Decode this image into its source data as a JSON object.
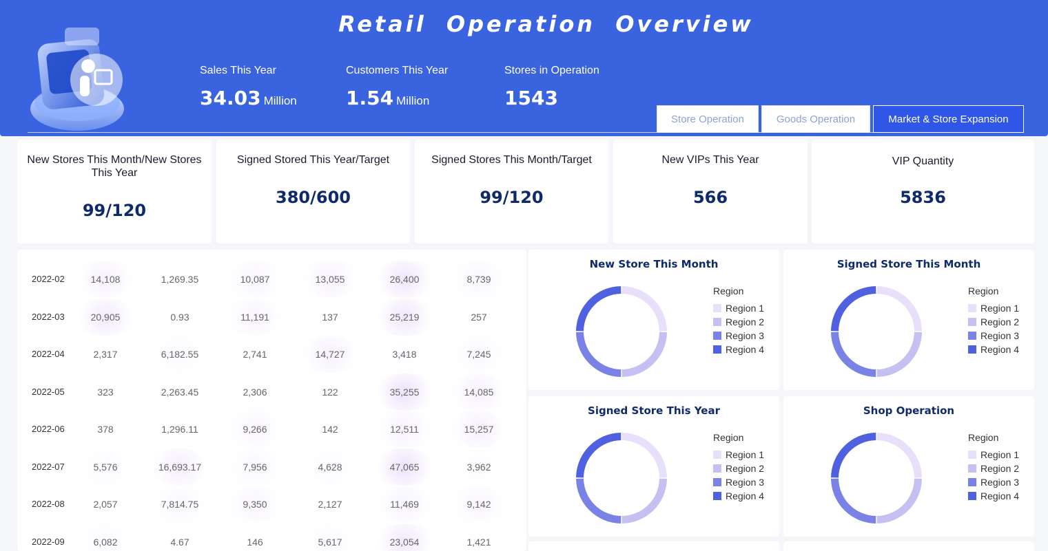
{
  "header": {
    "title": "Retail Operation Overview",
    "kpis": [
      {
        "label": "Sales This Year",
        "value": "34.03",
        "unit": "Million"
      },
      {
        "label": "Customers This Year",
        "value": "1.54",
        "unit": "Million"
      },
      {
        "label": "Stores in Operation",
        "value": "1543",
        "unit": ""
      }
    ],
    "tabs": [
      {
        "label": "Store Operation",
        "active": false
      },
      {
        "label": "Goods Operation",
        "active": false
      },
      {
        "label": "Market & Store Expansion",
        "active": true
      }
    ]
  },
  "cards": [
    {
      "label": "New Stores This Month/New Stores This Year",
      "value": "99/120"
    },
    {
      "label": "Signed Stored This Year/Target",
      "value": "380/600"
    },
    {
      "label": "Signed Stores This Month/Target",
      "value": "99/120"
    },
    {
      "label": "New VIPs This Year",
      "value": "566"
    },
    {
      "label": "VIP Quantity",
      "value": "5836"
    }
  ],
  "table": {
    "rows": [
      {
        "date": "2022-02",
        "cells": [
          "14,108",
          "1,269.35",
          "10,087",
          "13,055",
          "26,400",
          "8,739"
        ]
      },
      {
        "date": "2022-03",
        "cells": [
          "20,905",
          "0.93",
          "11,191",
          "137",
          "25,219",
          "257"
        ]
      },
      {
        "date": "2022-04",
        "cells": [
          "2,317",
          "6,182.55",
          "2,741",
          "14,727",
          "3,418",
          "7,245"
        ]
      },
      {
        "date": "2022-05",
        "cells": [
          "323",
          "2,263.45",
          "2,306",
          "122",
          "35,255",
          "14,085"
        ]
      },
      {
        "date": "2022-06",
        "cells": [
          "378",
          "1,296.11",
          "9,266",
          "142",
          "12,511",
          "15,257"
        ]
      },
      {
        "date": "2022-07",
        "cells": [
          "5,576",
          "16,693.17",
          "7,956",
          "4,628",
          "47,065",
          "3,962"
        ]
      },
      {
        "date": "2022-08",
        "cells": [
          "2,057",
          "7,814.75",
          "9,350",
          "2,127",
          "11,469",
          "9,142"
        ]
      },
      {
        "date": "2022-09",
        "cells": [
          "6,082",
          "4.67",
          "146",
          "5,617",
          "23,054",
          "1,421"
        ]
      }
    ]
  },
  "donut_colors": [
    "#e8e0fb",
    "#c5c0f2",
    "#7b82e6",
    "#4f60e0"
  ],
  "donuts": [
    {
      "title": "New Store This Month",
      "legend_title": "Region",
      "legend": [
        "Region 1",
        "Region 2",
        "Region 3",
        "Region 4"
      ],
      "values": [
        25,
        25,
        25,
        25
      ]
    },
    {
      "title": "Signed Store This Month",
      "legend_title": "Region",
      "legend": [
        "Region 1",
        "Region 2",
        "Region 3",
        "Region 4"
      ],
      "values": [
        25,
        25,
        25,
        25
      ]
    },
    {
      "title": "Signed Store This Year",
      "legend_title": "Region",
      "legend": [
        "Region 1",
        "Region 2",
        "Region 3",
        "Region 4"
      ],
      "values": [
        25,
        25,
        25,
        25
      ]
    },
    {
      "title": "Shop Operation",
      "legend_title": "Region",
      "legend": [
        "Region 1",
        "Region 2",
        "Region 3",
        "Region 4"
      ],
      "values": [
        25,
        25,
        25,
        25
      ]
    }
  ]
}
